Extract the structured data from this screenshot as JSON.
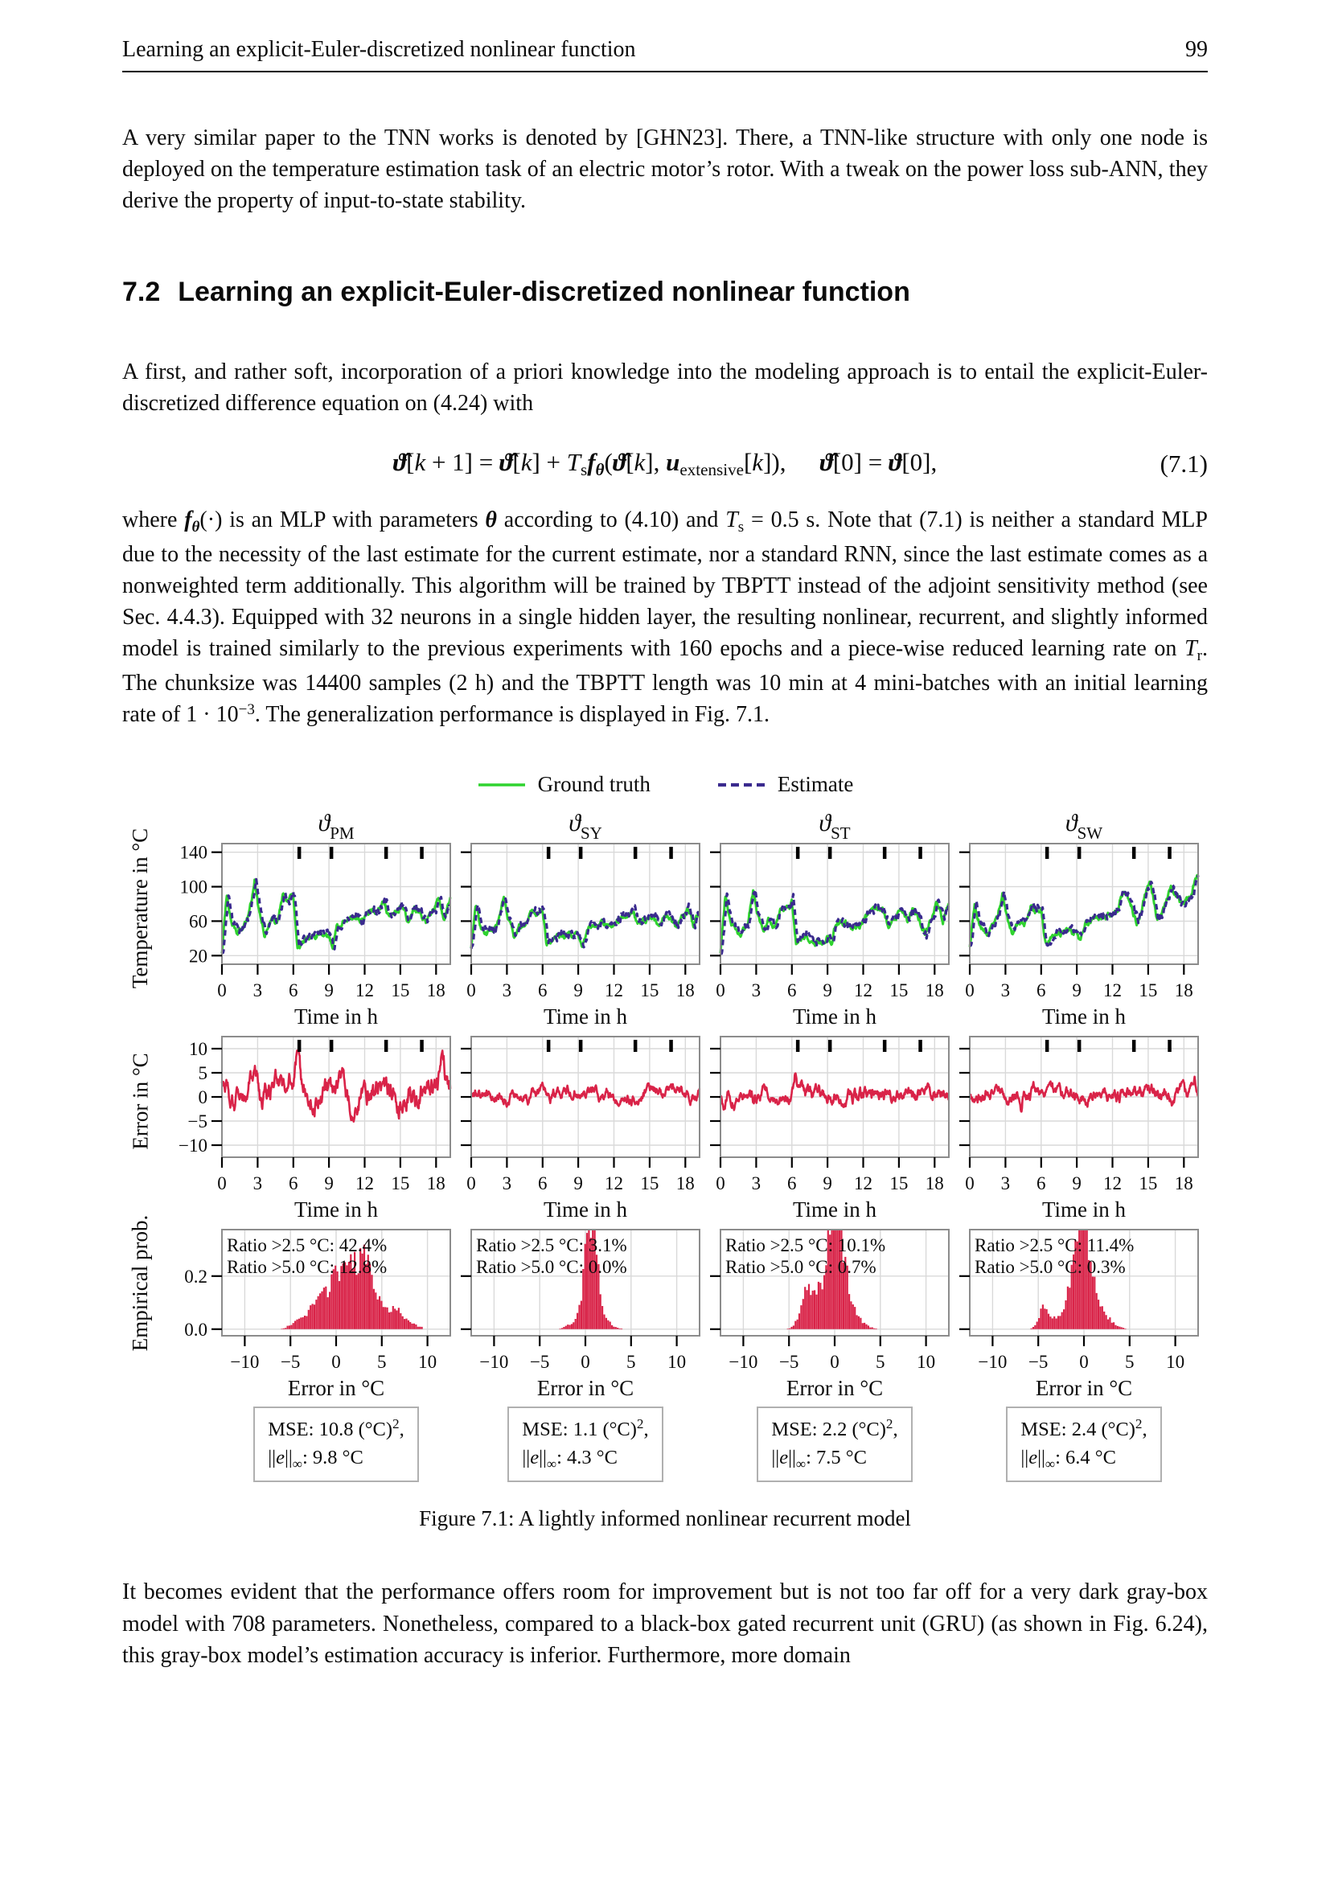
{
  "header": {
    "title": "Learning an explicit-Euler-discretized nonlinear function",
    "page_number": "99"
  },
  "section": {
    "number": "7.2",
    "title": "Learning an explicit-Euler-discretized nonlinear function"
  },
  "paragraphs": {
    "p1": "A very similar paper to the TNN works is denoted by [GHN23]. There, a TNN-like structure with only one node is deployed on the temperature estimation task of an electric motor’s rotor. With a tweak on the power loss sub-ANN, they derive the property of input-to-state stability.",
    "p2": "A first, and rather soft, incorporation of a priori knowledge into the modeling approach is to entail the explicit-Euler-discretized difference equation on (4.24) with",
    "p4": "It becomes evident that the performance offers room for improvement but is not too far off for a very dark gray-box model with 708 parameters. Nonetheless, compared to a black-box gated recurrent unit (GRU) (as shown in Fig. 6.24), this gray-box model’s estimation accuracy is inferior. Furthermore, more domain"
  },
  "p3_segments": [
    {
      "t": "where ",
      "s": "n"
    },
    {
      "t": "f",
      "s": "bi"
    },
    {
      "t": "θ",
      "s": "bisub"
    },
    {
      "t": "(·) is an MLP with parameters ",
      "s": "n"
    },
    {
      "t": "θ",
      "s": "bi"
    },
    {
      "t": " according to (4.10) and ",
      "s": "n"
    },
    {
      "t": "T",
      "s": "i"
    },
    {
      "t": "s",
      "s": "sub"
    },
    {
      "t": " = 0.5 s. Note that (7.1) is neither a standard MLP due to the necessity of the last estimate for the current estimate, nor a standard RNN, since the last estimate comes as a nonweighted term additionally. This algorithm will be trained by TBPTT instead of the adjoint sensitivity method (see Sec. 4.4.3). Equipped with 32 neurons in a single hidden layer, the resulting nonlinear, recurrent, and slightly informed model is trained similarly to the previous experiments with 160 epochs and a piece-wise reduced learning rate on ",
      "s": "n"
    },
    {
      "t": "T",
      "s": "i"
    },
    {
      "t": "r",
      "s": "sub"
    },
    {
      "t": ". The chunksize was 14400 samples (2 h) and the TBPTT length was 10 min at 4 mini-batches with an initial learning rate of 1 · 10",
      "s": "n"
    },
    {
      "t": "−3",
      "s": "sup"
    },
    {
      "t": ". The generalization performance is displayed in Fig. 7.1.",
      "s": "n"
    }
  ],
  "equation": {
    "number": "(7.1)",
    "segments": [
      {
        "t": "ϑ̂",
        "s": "bi"
      },
      {
        "t": "[",
        "s": "n"
      },
      {
        "t": "k",
        "s": "i"
      },
      {
        "t": " + 1] = ",
        "s": "n"
      },
      {
        "t": "ϑ̂",
        "s": "bi"
      },
      {
        "t": "[",
        "s": "n"
      },
      {
        "t": "k",
        "s": "i"
      },
      {
        "t": "] + ",
        "s": "n"
      },
      {
        "t": "T",
        "s": "i"
      },
      {
        "t": "s",
        "s": "sub"
      },
      {
        "t": "f",
        "s": "bi"
      },
      {
        "t": "θ",
        "s": "bisub"
      },
      {
        "t": "(",
        "s": "n"
      },
      {
        "t": "ϑ̂",
        "s": "bi"
      },
      {
        "t": "[",
        "s": "n"
      },
      {
        "t": "k",
        "s": "i"
      },
      {
        "t": "], ",
        "s": "n"
      },
      {
        "t": "u",
        "s": "bi"
      },
      {
        "t": "extensive",
        "s": "sub"
      },
      {
        "t": "[",
        "s": "n"
      },
      {
        "t": "k",
        "s": "i"
      },
      {
        "t": "]),",
        "s": "n"
      },
      {
        "t": "",
        "s": "sp"
      },
      {
        "t": "ϑ̂",
        "s": "bi"
      },
      {
        "t": "[0] = ",
        "s": "n"
      },
      {
        "t": "ϑ",
        "s": "bi"
      },
      {
        "t": "[0],",
        "s": "n"
      }
    ]
  },
  "figure": {
    "legend": {
      "ground_truth": "Ground truth",
      "estimate": "Estimate"
    },
    "colors": {
      "ground_truth": "#2fd32f",
      "estimate": "#3a2a8e",
      "error": "#d92348",
      "frame": "#8c8c8c",
      "grid": "#d9d9d9",
      "marker": "#000000"
    },
    "event_marker_x": [
      6.5,
      9.2,
      13.8,
      16.8
    ],
    "columns": [
      {
        "title_main": "ϑ",
        "title_sub": "PM",
        "ratio_line1": "Ratio >2.5 °C: 42.4%",
        "ratio_line2": "Ratio >5.0 °C: 12.8%",
        "mse": {
          "pre": "MSE: 10.8 (°C)",
          "sup": "2",
          "post": ","
        },
        "norm": {
          "pre": "||",
          "var": "e",
          "mid": "||",
          "sub": "∞",
          "post": ": 9.8 °C"
        }
      },
      {
        "title_main": "ϑ",
        "title_sub": "SY",
        "ratio_line1": "Ratio >2.5 °C: 3.1%",
        "ratio_line2": "Ratio >5.0 °C: 0.0%",
        "mse": {
          "pre": "MSE: 1.1 (°C)",
          "sup": "2",
          "post": ","
        },
        "norm": {
          "pre": "||",
          "var": "e",
          "mid": "||",
          "sub": "∞",
          "post": ": 4.3 °C"
        }
      },
      {
        "title_main": "ϑ",
        "title_sub": "ST",
        "ratio_line1": "Ratio >2.5 °C: 10.1%",
        "ratio_line2": "Ratio >5.0 °C: 0.7%",
        "mse": {
          "pre": "MSE: 2.2 (°C)",
          "sup": "2",
          "post": ","
        },
        "norm": {
          "pre": "||",
          "var": "e",
          "mid": "||",
          "sub": "∞",
          "post": ": 7.5 °C"
        }
      },
      {
        "title_main": "ϑ",
        "title_sub": "SW",
        "ratio_line1": "Ratio >2.5 °C: 11.4%",
        "ratio_line2": "Ratio >5.0 °C: 0.3%",
        "mse": {
          "pre": "MSE: 2.4 (°C)",
          "sup": "2",
          "post": ","
        },
        "norm": {
          "pre": "||",
          "var": "e",
          "mid": "||",
          "sub": "∞",
          "post": ": 6.4 °C"
        }
      }
    ],
    "axes": {
      "temp": {
        "ylabel": "Temperature in °C",
        "yticks": [
          "140",
          "100",
          "60",
          "20"
        ],
        "ytick_vals": [
          140,
          100,
          60,
          20
        ],
        "ylim": [
          10,
          150
        ],
        "xlabel": "Time in h",
        "xticks": [
          "0",
          "3",
          "6",
          "9",
          "12",
          "15",
          "18"
        ],
        "xtick_vals": [
          0,
          3,
          6,
          9,
          12,
          15,
          18
        ],
        "xlim": [
          0,
          19.2
        ]
      },
      "error": {
        "ylabel": "Error in °C",
        "yticks": [
          "10",
          "5",
          "0",
          "−5",
          "−10"
        ],
        "ytick_vals": [
          10,
          5,
          0,
          -5,
          -10
        ],
        "ylim": [
          -12.5,
          12.5
        ],
        "xlabel": "Time in h",
        "xticks": [
          "0",
          "3",
          "6",
          "9",
          "12",
          "15",
          "18"
        ],
        "xtick_vals": [
          0,
          3,
          6,
          9,
          12,
          15,
          18
        ],
        "xlim": [
          0,
          19.2
        ]
      },
      "hist": {
        "ylabel": "Empirical prob.",
        "yticks": [
          "0.2",
          "0.0"
        ],
        "ytick_vals": [
          0.2,
          0.0
        ],
        "ylim": [
          -0.025,
          0.375
        ],
        "xlabel": "Error in °C",
        "xticks": [
          "−10",
          "−5",
          "0",
          "5",
          "10"
        ],
        "xtick_vals": [
          -10,
          -5,
          0,
          5,
          10
        ],
        "xlim": [
          -12.5,
          12.5
        ]
      }
    },
    "caption": "Figure 7.1: A lightly informed nonlinear recurrent model"
  }
}
